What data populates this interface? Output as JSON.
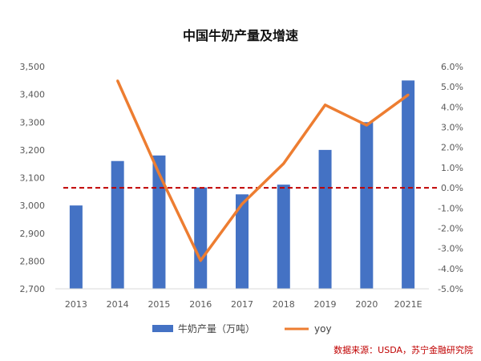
{
  "chart_data": {
    "type": "bar+line",
    "title": "中国牛奶产量及增速",
    "categories": [
      "2013",
      "2014",
      "2015",
      "2016",
      "2017",
      "2018",
      "2019",
      "2020",
      "2021E"
    ],
    "series": [
      {
        "name": "牛奶产量（万吨）",
        "type": "bar",
        "axis": "left",
        "color": "#4472C4",
        "values": [
          3000,
          3160,
          3180,
          3065,
          3040,
          3075,
          3200,
          3300,
          3450
        ]
      },
      {
        "name": "yoy",
        "type": "line",
        "axis": "right",
        "color": "#ED7D31",
        "values": [
          null,
          5.3,
          0.7,
          -3.6,
          -0.8,
          1.2,
          4.1,
          3.1,
          4.6
        ]
      }
    ],
    "left_axis": {
      "min": 2700,
      "max": 3500,
      "step": 100,
      "ticks": [
        "2,700",
        "2,800",
        "2,900",
        "3,000",
        "3,100",
        "3,200",
        "3,300",
        "3,400",
        "3,500"
      ]
    },
    "right_axis": {
      "min": -5,
      "max": 6,
      "step": 1,
      "unit": "%",
      "ticks": [
        "-5.0%",
        "-4.0%",
        "-3.0%",
        "-2.0%",
        "-1.0%",
        "0.0%",
        "1.0%",
        "2.0%",
        "3.0%",
        "4.0%",
        "5.0%",
        "6.0%"
      ]
    },
    "reference_line": {
      "value": 0,
      "axis": "right",
      "style": "dashed",
      "color": "#C00000"
    },
    "legend_position": "bottom",
    "grid": false
  },
  "source": "数据来源：USDA，苏宁金融研究院"
}
